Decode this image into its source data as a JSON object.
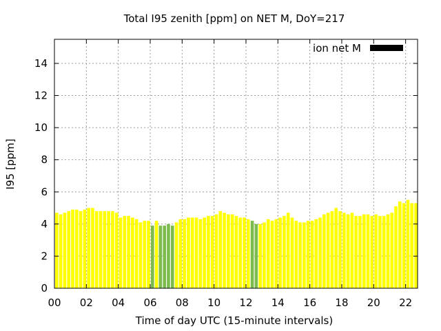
{
  "chart_data": {
    "type": "bar",
    "title": "Total I95 zenith [ppm] on NET M, DoY=217",
    "xlabel": "Time of day UTC (15-minute intervals)",
    "ylabel": "I95 [ppm]",
    "xlim": [
      0,
      22.75
    ],
    "ylim": [
      0,
      15.5
    ],
    "x_ticks": [
      "00",
      "02",
      "04",
      "06",
      "08",
      "10",
      "12",
      "14",
      "16",
      "18",
      "20",
      "22"
    ],
    "y_ticks": [
      "0",
      "2",
      "4",
      "6",
      "8",
      "10",
      "12",
      "14"
    ],
    "grid": true,
    "legend": {
      "label": "ion net M",
      "color": "#000000",
      "position": "top-right"
    },
    "colors": {
      "default_bar": "#ffff00",
      "low_bar": "#7cbc4c"
    },
    "bar_interval_hours": 0.25,
    "bar_width_fraction": 0.8,
    "values": [
      4.7,
      4.6,
      4.7,
      4.8,
      4.9,
      4.9,
      4.8,
      4.9,
      5.0,
      5.0,
      4.8,
      4.8,
      4.8,
      4.8,
      4.8,
      4.7,
      4.4,
      4.5,
      4.5,
      4.4,
      4.3,
      4.1,
      4.2,
      4.2,
      3.9,
      4.2,
      3.9,
      3.9,
      4.0,
      3.9,
      4.1,
      4.3,
      4.3,
      4.4,
      4.4,
      4.4,
      4.3,
      4.4,
      4.5,
      4.5,
      4.6,
      4.8,
      4.7,
      4.6,
      4.6,
      4.5,
      4.4,
      4.4,
      4.3,
      4.2,
      4.0,
      4.0,
      4.1,
      4.3,
      4.2,
      4.3,
      4.4,
      4.5,
      4.7,
      4.4,
      4.2,
      4.1,
      4.1,
      4.2,
      4.2,
      4.3,
      4.4,
      4.6,
      4.7,
      4.8,
      5.0,
      4.8,
      4.7,
      4.6,
      4.7,
      4.5,
      4.5,
      4.6,
      4.6,
      4.5,
      4.6,
      4.5,
      4.5,
      4.6,
      4.7,
      5.1,
      5.4,
      5.3,
      5.5,
      5.3,
      5.3
    ],
    "low_bar_indices": [
      24,
      26,
      27,
      28,
      29,
      49,
      50
    ]
  }
}
